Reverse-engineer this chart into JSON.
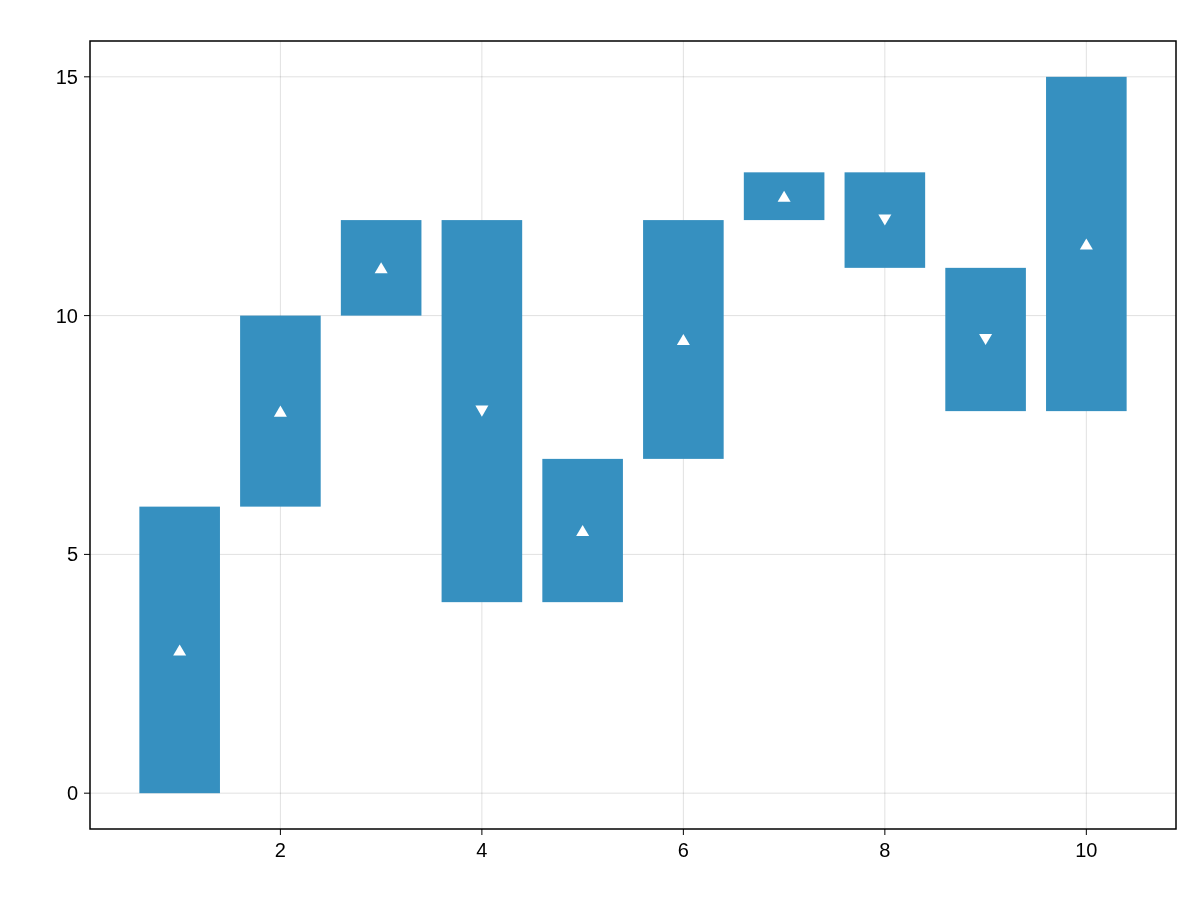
{
  "chart_data": {
    "type": "bar",
    "x": [
      1,
      2,
      3,
      4,
      5,
      6,
      7,
      8,
      9,
      10
    ],
    "base": [
      0,
      6,
      10,
      12,
      4,
      7,
      12,
      13,
      11,
      8
    ],
    "values": [
      6,
      4,
      2,
      -8,
      3,
      5,
      1,
      -2,
      -3,
      7
    ],
    "color": "#3690c0",
    "xlim": [
      0.11,
      10.89
    ],
    "xticks": [
      2,
      4,
      6,
      8,
      10
    ],
    "ylim": [
      -0.75,
      15.75
    ],
    "yticks": [
      0,
      5,
      10,
      15
    ],
    "grid": true
  }
}
